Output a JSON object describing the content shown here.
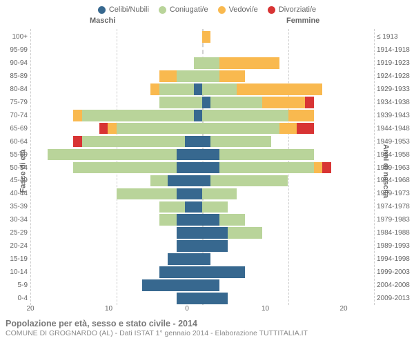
{
  "chart": {
    "type": "population-pyramid",
    "background_color": "#ffffff",
    "grid_color": "#cccccc",
    "text_color": "#666666",
    "legend": [
      {
        "label": "Celibi/Nubili",
        "color": "#37688f"
      },
      {
        "label": "Coniugati/e",
        "color": "#b9d49a"
      },
      {
        "label": "Vedovi/e",
        "color": "#f9b94f"
      },
      {
        "label": "Divorziati/e",
        "color": "#d83434"
      }
    ],
    "headers": {
      "male": "Maschi",
      "female": "Femmine"
    },
    "y_left_title": "Fasce di età",
    "y_right_title": "Anni di nascita",
    "x_ticks": [
      20,
      10,
      0,
      10,
      20
    ],
    "x_max": 20,
    "title": "Popolazione per età, sesso e stato civile - 2014",
    "subtitle": "COMUNE DI GROGNARDO (AL) - Dati ISTAT 1° gennaio 2014 - Elaborazione TUTTITALIA.IT",
    "bar_height_pct": 88,
    "label_fontsize": 10,
    "title_fontsize": 12.5,
    "rows": [
      {
        "age": "100+",
        "year": "≤ 1913",
        "m": {
          "c": 0,
          "co": 0,
          "v": 0,
          "d": 0
        },
        "f": {
          "c": 0,
          "co": 0,
          "v": 1,
          "d": 0
        }
      },
      {
        "age": "95-99",
        "year": "1914-1918",
        "m": {
          "c": 0,
          "co": 0,
          "v": 0,
          "d": 0
        },
        "f": {
          "c": 0,
          "co": 0,
          "v": 0,
          "d": 0
        }
      },
      {
        "age": "90-94",
        "year": "1919-1923",
        "m": {
          "c": 0,
          "co": 1,
          "v": 0,
          "d": 0
        },
        "f": {
          "c": 0,
          "co": 2,
          "v": 7,
          "d": 0
        }
      },
      {
        "age": "85-89",
        "year": "1924-1928",
        "m": {
          "c": 0,
          "co": 3,
          "v": 2,
          "d": 0
        },
        "f": {
          "c": 0,
          "co": 2,
          "v": 3,
          "d": 0
        }
      },
      {
        "age": "80-84",
        "year": "1929-1933",
        "m": {
          "c": 1,
          "co": 4,
          "v": 1,
          "d": 0
        },
        "f": {
          "c": 0,
          "co": 4,
          "v": 10,
          "d": 0
        }
      },
      {
        "age": "75-79",
        "year": "1934-1938",
        "m": {
          "c": 0,
          "co": 5,
          "v": 0,
          "d": 0
        },
        "f": {
          "c": 1,
          "co": 6,
          "v": 5,
          "d": 1
        }
      },
      {
        "age": "70-74",
        "year": "1939-1943",
        "m": {
          "c": 1,
          "co": 13,
          "v": 1,
          "d": 0
        },
        "f": {
          "c": 0,
          "co": 10,
          "v": 3,
          "d": 0
        }
      },
      {
        "age": "65-69",
        "year": "1944-1948",
        "m": {
          "c": 0,
          "co": 10,
          "v": 1,
          "d": 1
        },
        "f": {
          "c": 0,
          "co": 9,
          "v": 2,
          "d": 2
        }
      },
      {
        "age": "60-64",
        "year": "1949-1953",
        "m": {
          "c": 2,
          "co": 12,
          "v": 0,
          "d": 1
        },
        "f": {
          "c": 1,
          "co": 7,
          "v": 0,
          "d": 0
        }
      },
      {
        "age": "55-59",
        "year": "1954-1958",
        "m": {
          "c": 3,
          "co": 15,
          "v": 0,
          "d": 0
        },
        "f": {
          "c": 2,
          "co": 11,
          "v": 0,
          "d": 0
        }
      },
      {
        "age": "50-54",
        "year": "1959-1963",
        "m": {
          "c": 3,
          "co": 12,
          "v": 0,
          "d": 0
        },
        "f": {
          "c": 2,
          "co": 11,
          "v": 1,
          "d": 1
        }
      },
      {
        "age": "45-49",
        "year": "1964-1968",
        "m": {
          "c": 4,
          "co": 2,
          "v": 0,
          "d": 0
        },
        "f": {
          "c": 1,
          "co": 9,
          "v": 0,
          "d": 0
        }
      },
      {
        "age": "40-44",
        "year": "1969-1973",
        "m": {
          "c": 3,
          "co": 7,
          "v": 0,
          "d": 0
        },
        "f": {
          "c": 0,
          "co": 4,
          "v": 0,
          "d": 0
        }
      },
      {
        "age": "35-39",
        "year": "1974-1978",
        "m": {
          "c": 2,
          "co": 3,
          "v": 0,
          "d": 0
        },
        "f": {
          "c": 0,
          "co": 3,
          "v": 0,
          "d": 0
        }
      },
      {
        "age": "30-34",
        "year": "1979-1983",
        "m": {
          "c": 3,
          "co": 2,
          "v": 0,
          "d": 0
        },
        "f": {
          "c": 2,
          "co": 3,
          "v": 0,
          "d": 0
        }
      },
      {
        "age": "25-29",
        "year": "1984-1988",
        "m": {
          "c": 3,
          "co": 0,
          "v": 0,
          "d": 0
        },
        "f": {
          "c": 3,
          "co": 4,
          "v": 0,
          "d": 0
        }
      },
      {
        "age": "20-24",
        "year": "1989-1993",
        "m": {
          "c": 3,
          "co": 0,
          "v": 0,
          "d": 0
        },
        "f": {
          "c": 3,
          "co": 0,
          "v": 0,
          "d": 0
        }
      },
      {
        "age": "15-19",
        "year": "1994-1998",
        "m": {
          "c": 4,
          "co": 0,
          "v": 0,
          "d": 0
        },
        "f": {
          "c": 1,
          "co": 0,
          "v": 0,
          "d": 0
        }
      },
      {
        "age": "10-14",
        "year": "1999-2003",
        "m": {
          "c": 5,
          "co": 0,
          "v": 0,
          "d": 0
        },
        "f": {
          "c": 5,
          "co": 0,
          "v": 0,
          "d": 0
        }
      },
      {
        "age": "5-9",
        "year": "2004-2008",
        "m": {
          "c": 7,
          "co": 0,
          "v": 0,
          "d": 0
        },
        "f": {
          "c": 2,
          "co": 0,
          "v": 0,
          "d": 0
        }
      },
      {
        "age": "0-4",
        "year": "2009-2013",
        "m": {
          "c": 3,
          "co": 0,
          "v": 0,
          "d": 0
        },
        "f": {
          "c": 3,
          "co": 0,
          "v": 0,
          "d": 0
        }
      }
    ]
  }
}
